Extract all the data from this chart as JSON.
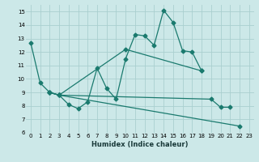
{
  "xlabel": "Humidex (Indice chaleur)",
  "bg_color": "#cce8e8",
  "line_color": "#1a7a6e",
  "grid_color": "#aacfcf",
  "xlim": [
    -0.5,
    23.5
  ],
  "ylim": [
    6,
    15.5
  ],
  "yticks": [
    6,
    7,
    8,
    9,
    10,
    11,
    12,
    13,
    14,
    15
  ],
  "xticks": [
    0,
    1,
    2,
    3,
    4,
    5,
    6,
    7,
    8,
    9,
    10,
    11,
    12,
    13,
    14,
    15,
    16,
    17,
    18,
    19,
    20,
    21,
    22,
    23
  ],
  "series": [
    [
      12.7,
      9.7,
      9.0,
      8.8,
      8.1,
      7.8,
      8.3,
      10.8,
      9.3,
      8.5,
      11.5,
      13.3,
      13.2,
      12.5,
      15.1,
      14.2,
      12.1,
      12.0,
      10.6,
      null,
      null,
      null,
      null,
      null
    ],
    [
      null,
      null,
      9.0,
      8.8,
      null,
      null,
      null,
      null,
      null,
      null,
      12.2,
      null,
      null,
      null,
      null,
      null,
      null,
      null,
      10.6,
      null,
      null,
      null,
      null,
      null
    ],
    [
      null,
      null,
      9.0,
      8.8,
      null,
      null,
      null,
      null,
      null,
      null,
      null,
      null,
      null,
      null,
      null,
      null,
      null,
      null,
      null,
      8.5,
      7.9,
      7.9,
      null,
      null
    ],
    [
      null,
      null,
      9.0,
      8.8,
      null,
      null,
      null,
      null,
      null,
      null,
      null,
      null,
      null,
      null,
      null,
      null,
      null,
      null,
      null,
      null,
      null,
      null,
      6.5,
      null
    ]
  ],
  "marker": "D",
  "markersize": 2.5,
  "linewidth": 0.9,
  "tick_fontsize": 5.0,
  "xlabel_fontsize": 6.0
}
